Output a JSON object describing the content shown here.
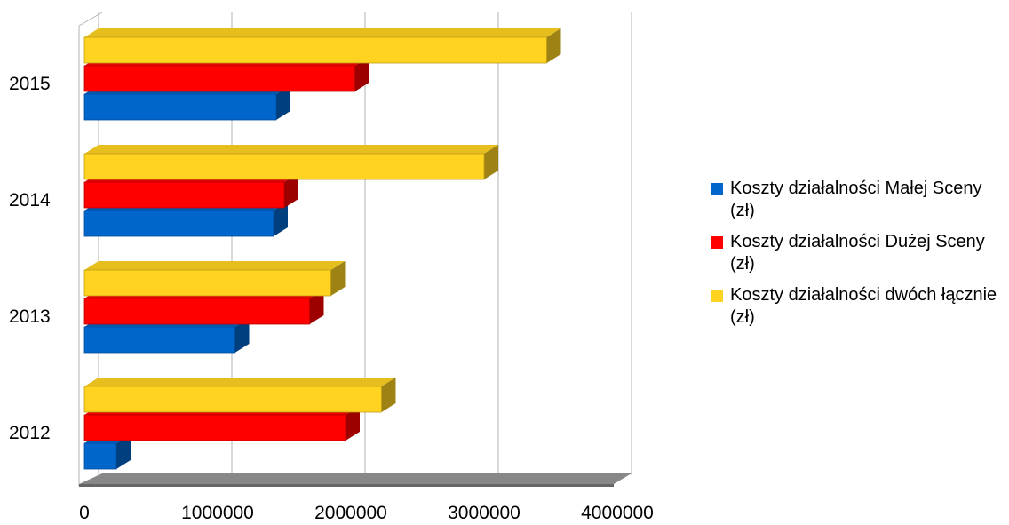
{
  "chart_data": {
    "type": "bar",
    "orientation": "horizontal",
    "style": "3d",
    "categories": [
      "2012",
      "2013",
      "2014",
      "2015"
    ],
    "series": [
      {
        "name": "Koszty działalności Małej Sceny (zł)",
        "color": "#0066cc",
        "values": [
          240000,
          1130000,
          1420000,
          1440000
        ]
      },
      {
        "name": "Koszty działalności Dużej Sceny (zł)",
        "color": "#ff0000",
        "values": [
          1960000,
          1690000,
          1500000,
          2030000
        ]
      },
      {
        "name": "Koszty działalności dwóch łącznie (zł)",
        "color": "#ffd320",
        "values": [
          2230000,
          1850000,
          3000000,
          3470000
        ]
      }
    ],
    "x_ticks": [
      "0",
      "1000000",
      "2000000",
      "3000000",
      "4000000"
    ],
    "xlim": [
      0,
      4000000
    ],
    "grid": true,
    "legend_position": "right",
    "title": "",
    "xlabel": "",
    "ylabel": ""
  }
}
